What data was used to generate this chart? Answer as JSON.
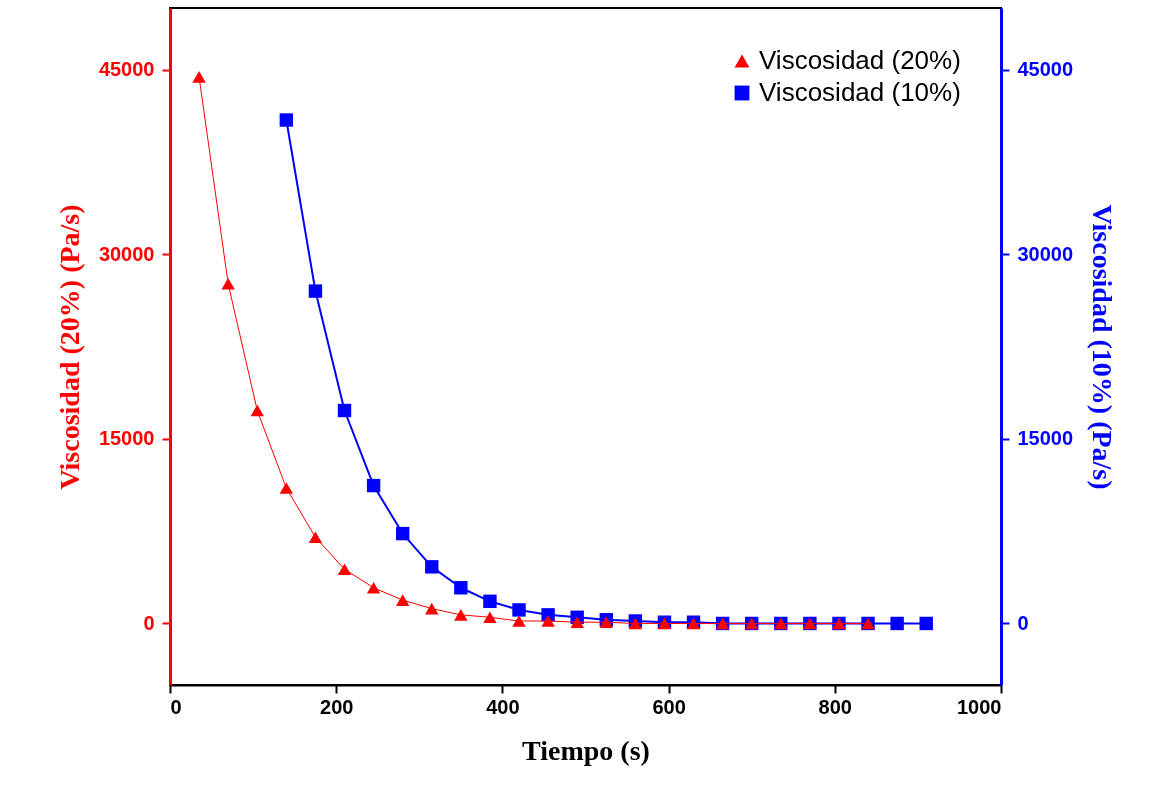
{
  "chart_data": {
    "type": "line",
    "xlabel": "Tiempo (s)",
    "ylabel": "Viscosidad (20%) (Pa/s)",
    "y2label": "Viscosidad (10%) (Pa/s)",
    "xlim": [
      0,
      1000
    ],
    "xticks": [
      0,
      200,
      400,
      600,
      800,
      1000
    ],
    "ylim": [
      -5000,
      50000
    ],
    "yticks": [
      0,
      15000,
      30000,
      45000
    ],
    "y2lim": [
      -5000,
      50000
    ],
    "y2ticks": [
      0,
      15000,
      30000,
      45000
    ],
    "legend": "top right",
    "grid": false,
    "series": [
      {
        "name": "Viscosidad (20%)",
        "color": "#ff0000",
        "marker": "triangle",
        "axis": "y",
        "x": [
          35,
          70,
          105,
          140,
          175,
          210,
          245,
          280,
          315,
          350,
          385,
          420,
          455,
          490,
          525,
          560,
          595,
          630,
          665,
          700,
          735,
          770,
          805,
          840
        ],
        "values": [
          44400,
          27600,
          17300,
          11000,
          7000,
          4400,
          2900,
          1900,
          1200,
          700,
          500,
          200,
          200,
          100,
          100,
          0,
          0,
          0,
          0,
          0,
          0,
          0,
          0,
          0
        ]
      },
      {
        "name": "Viscosidad (10%)",
        "color": "#0000ff",
        "marker": "square",
        "axis": "y2",
        "x": [
          140,
          175,
          210,
          245,
          280,
          315,
          350,
          385,
          420,
          455,
          490,
          525,
          560,
          595,
          630,
          665,
          700,
          735,
          770,
          805,
          840,
          875,
          910
        ],
        "values": [
          40900,
          27000,
          17300,
          11200,
          7300,
          4600,
          2900,
          1800,
          1100,
          700,
          500,
          300,
          200,
          100,
          100,
          0,
          0,
          0,
          0,
          0,
          0,
          0,
          0
        ]
      }
    ]
  }
}
